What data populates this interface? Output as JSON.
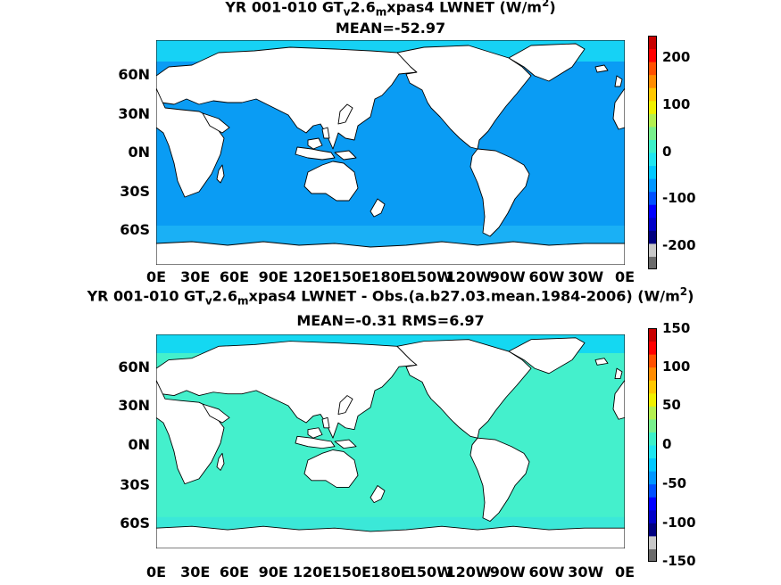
{
  "panels": [
    {
      "title": {
        "pre": "YR 001-010 GT",
        "sub1": "v",
        "mid": "2.6",
        "sub2": "m",
        "post": "xpas4  LWNET (W/m",
        "sup": "2",
        "end": ")"
      },
      "stats": "MEAN=-52.97",
      "lat_labels": [
        "60N",
        "30N",
        "0N",
        "30S",
        "60S"
      ],
      "lon_labels": [
        "0E",
        "30E",
        "60E",
        "90E",
        "120E",
        "150E",
        "180E",
        "150W",
        "120W",
        "90W",
        "60W",
        "30W",
        "0E"
      ],
      "colorbar_ticks": [
        "200",
        "100",
        "0",
        "-100",
        "-200"
      ],
      "colorbar_range": [
        -250,
        250
      ],
      "ocean_color": "#0a9cf4",
      "high_lat_color": "#16d2f5"
    },
    {
      "title": {
        "pre": "YR 001-010 GT",
        "sub1": "v",
        "mid": "2.6",
        "sub2": "m",
        "post": "xpas4 LWNET - Obs.(a.b27.03.mean.1984-2006) (W/m",
        "sup": "2",
        "end": ")"
      },
      "stats": "MEAN=-0.31 RMS=6.97",
      "lat_labels": [
        "60N",
        "30N",
        "0N",
        "30S",
        "60S"
      ],
      "lon_labels": [
        "0E",
        "30E",
        "60E",
        "90E",
        "120E",
        "150E",
        "180E",
        "150W",
        "120W",
        "90W",
        "60W",
        "30W",
        "0E"
      ],
      "colorbar_ticks": [
        "150",
        "100",
        "50",
        "0",
        "-50",
        "-100",
        "-150"
      ],
      "colorbar_range": [
        -150,
        150
      ],
      "ocean_color": "#44f0cc",
      "high_lat_color": "#14d8f2"
    }
  ],
  "colormap": [
    "#6a6a6a",
    "#c8c8c8",
    "#000080",
    "#0000c8",
    "#0000ff",
    "#0050ff",
    "#0096ff",
    "#00c8ff",
    "#1ee6f0",
    "#3cf0c8",
    "#78f08c",
    "#b4f050",
    "#f0f000",
    "#ffc800",
    "#ff8c00",
    "#ff5000",
    "#ff0000",
    "#c80000"
  ]
}
